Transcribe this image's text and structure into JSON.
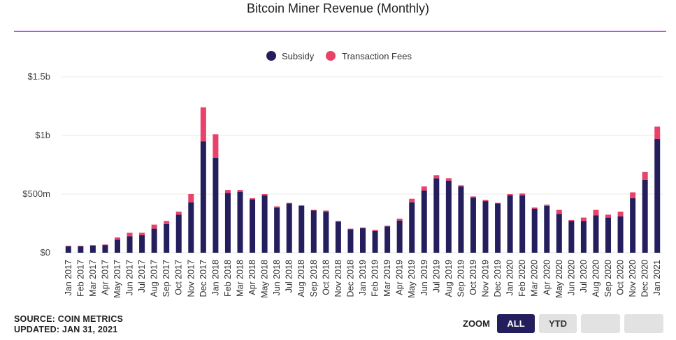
{
  "title": "Bitcoin Miner Revenue (Monthly)",
  "legend": {
    "items": [
      {
        "label": "Subsidy",
        "color": "#241f5c"
      },
      {
        "label": "Transaction Fees",
        "color": "#e8426a"
      }
    ]
  },
  "footer": {
    "source": "SOURCE: COIN METRICS",
    "updated": "UPDATED: JAN 31, 2021"
  },
  "zoom": {
    "label": "ZOOM",
    "buttons": [
      "ALL",
      "YTD",
      "",
      ""
    ],
    "active": "ALL"
  },
  "chart_data": {
    "type": "bar",
    "stacked": true,
    "title": "Bitcoin Miner Revenue (Monthly)",
    "ylim": [
      0,
      1500000000
    ],
    "y_ticks": [
      {
        "value": 0,
        "label": "$0"
      },
      {
        "value": 500000000,
        "label": "$500m"
      },
      {
        "value": 1000000000,
        "label": "$1b"
      },
      {
        "value": 1500000000,
        "label": "$1.5b"
      }
    ],
    "grid": true,
    "legend_position": "top-center",
    "categories": [
      "Jan 2017",
      "Feb 2017",
      "Mar 2017",
      "Apr 2017",
      "May 2017",
      "Jun 2017",
      "Jul 2017",
      "Aug 2017",
      "Sep 2017",
      "Oct 2017",
      "Nov 2017",
      "Dec 2017",
      "Jan 2018",
      "Feb 2018",
      "Mar 2018",
      "Apr 2018",
      "May 2018",
      "Jun 2018",
      "Jul 2018",
      "Aug 2018",
      "Sep 2018",
      "Oct 2018",
      "Nov 2018",
      "Dec 2018",
      "Jan 2019",
      "Feb 2019",
      "Mar 2019",
      "Apr 2019",
      "May 2019",
      "Jun 2019",
      "Jul 2019",
      "Aug 2019",
      "Sep 2019",
      "Oct 2019",
      "Nov 2019",
      "Dec 2019",
      "Jan 2020",
      "Feb 2020",
      "Mar 2020",
      "Apr 2020",
      "May 2020",
      "Jun 2020",
      "Jul 2020",
      "Aug 2020",
      "Sep 2020",
      "Oct 2020",
      "Nov 2020",
      "Dec 2020",
      "Jan 2021"
    ],
    "series": [
      {
        "name": "Subsidy",
        "color": "#241f5c",
        "values": [
          55000000,
          55000000,
          60000000,
          65000000,
          110000000,
          140000000,
          150000000,
          205000000,
          245000000,
          325000000,
          430000000,
          950000000,
          810000000,
          510000000,
          520000000,
          455000000,
          490000000,
          385000000,
          420000000,
          400000000,
          360000000,
          350000000,
          265000000,
          200000000,
          210000000,
          185000000,
          225000000,
          275000000,
          430000000,
          530000000,
          635000000,
          615000000,
          565000000,
          470000000,
          440000000,
          420000000,
          490000000,
          490000000,
          375000000,
          400000000,
          330000000,
          270000000,
          270000000,
          320000000,
          300000000,
          310000000,
          465000000,
          620000000,
          970000000
        ]
      },
      {
        "name": "Transaction Fees",
        "color": "#e8426a",
        "values": [
          5000000,
          5000000,
          5000000,
          5000000,
          20000000,
          30000000,
          20000000,
          35000000,
          25000000,
          25000000,
          70000000,
          290000000,
          200000000,
          25000000,
          15000000,
          10000000,
          10000000,
          10000000,
          5000000,
          5000000,
          5000000,
          10000000,
          5000000,
          5000000,
          5000000,
          10000000,
          5000000,
          15000000,
          30000000,
          35000000,
          25000000,
          20000000,
          10000000,
          10000000,
          10000000,
          5000000,
          10000000,
          15000000,
          10000000,
          10000000,
          35000000,
          10000000,
          30000000,
          45000000,
          25000000,
          40000000,
          50000000,
          70000000,
          105000000
        ]
      }
    ]
  }
}
